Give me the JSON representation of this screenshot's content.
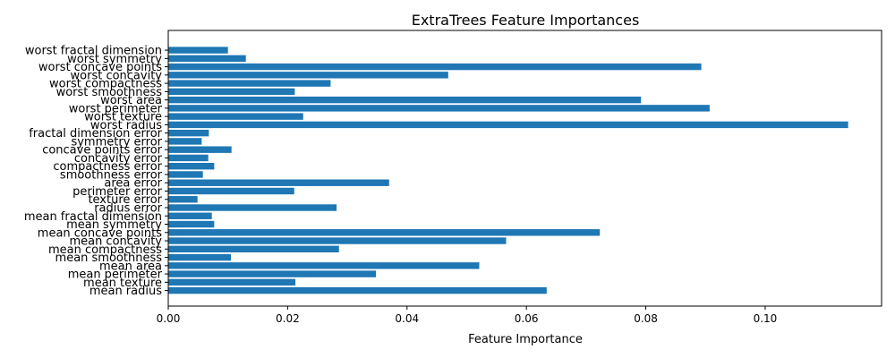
{
  "chart_data": {
    "type": "bar",
    "orientation": "horizontal",
    "title": "ExtraTrees Feature Importances",
    "xlabel": "Feature Importance",
    "ylabel": "",
    "xlim": [
      0,
      0.1195
    ],
    "x_ticks": [
      "0.00",
      "0.02",
      "0.04",
      "0.06",
      "0.08",
      "0.10"
    ],
    "grid": false,
    "bar_color": "#1f77b4",
    "categories": [
      "mean radius",
      "mean texture",
      "mean perimeter",
      "mean area",
      "mean smoothness",
      "mean compactness",
      "mean concavity",
      "mean concave points",
      "mean symmetry",
      "mean fractal dimension",
      "radius error",
      "texture error",
      "perimeter error",
      "area error",
      "smoothness error",
      "compactness error",
      "concavity error",
      "concave points error",
      "symmetry error",
      "fractal dimension error",
      "worst radius",
      "worst texture",
      "worst perimeter",
      "worst area",
      "worst smoothness",
      "worst compactness",
      "worst concavity",
      "worst concave points",
      "worst symmetry",
      "worst fractal dimension"
    ],
    "values": [
      0.0634,
      0.0213,
      0.0348,
      0.0521,
      0.0105,
      0.0286,
      0.0566,
      0.0723,
      0.0077,
      0.0073,
      0.0282,
      0.0049,
      0.0211,
      0.037,
      0.0058,
      0.0077,
      0.0067,
      0.0106,
      0.0056,
      0.0068,
      0.1139,
      0.0226,
      0.0907,
      0.0792,
      0.0212,
      0.0272,
      0.0469,
      0.0893,
      0.013,
      0.01
    ]
  }
}
